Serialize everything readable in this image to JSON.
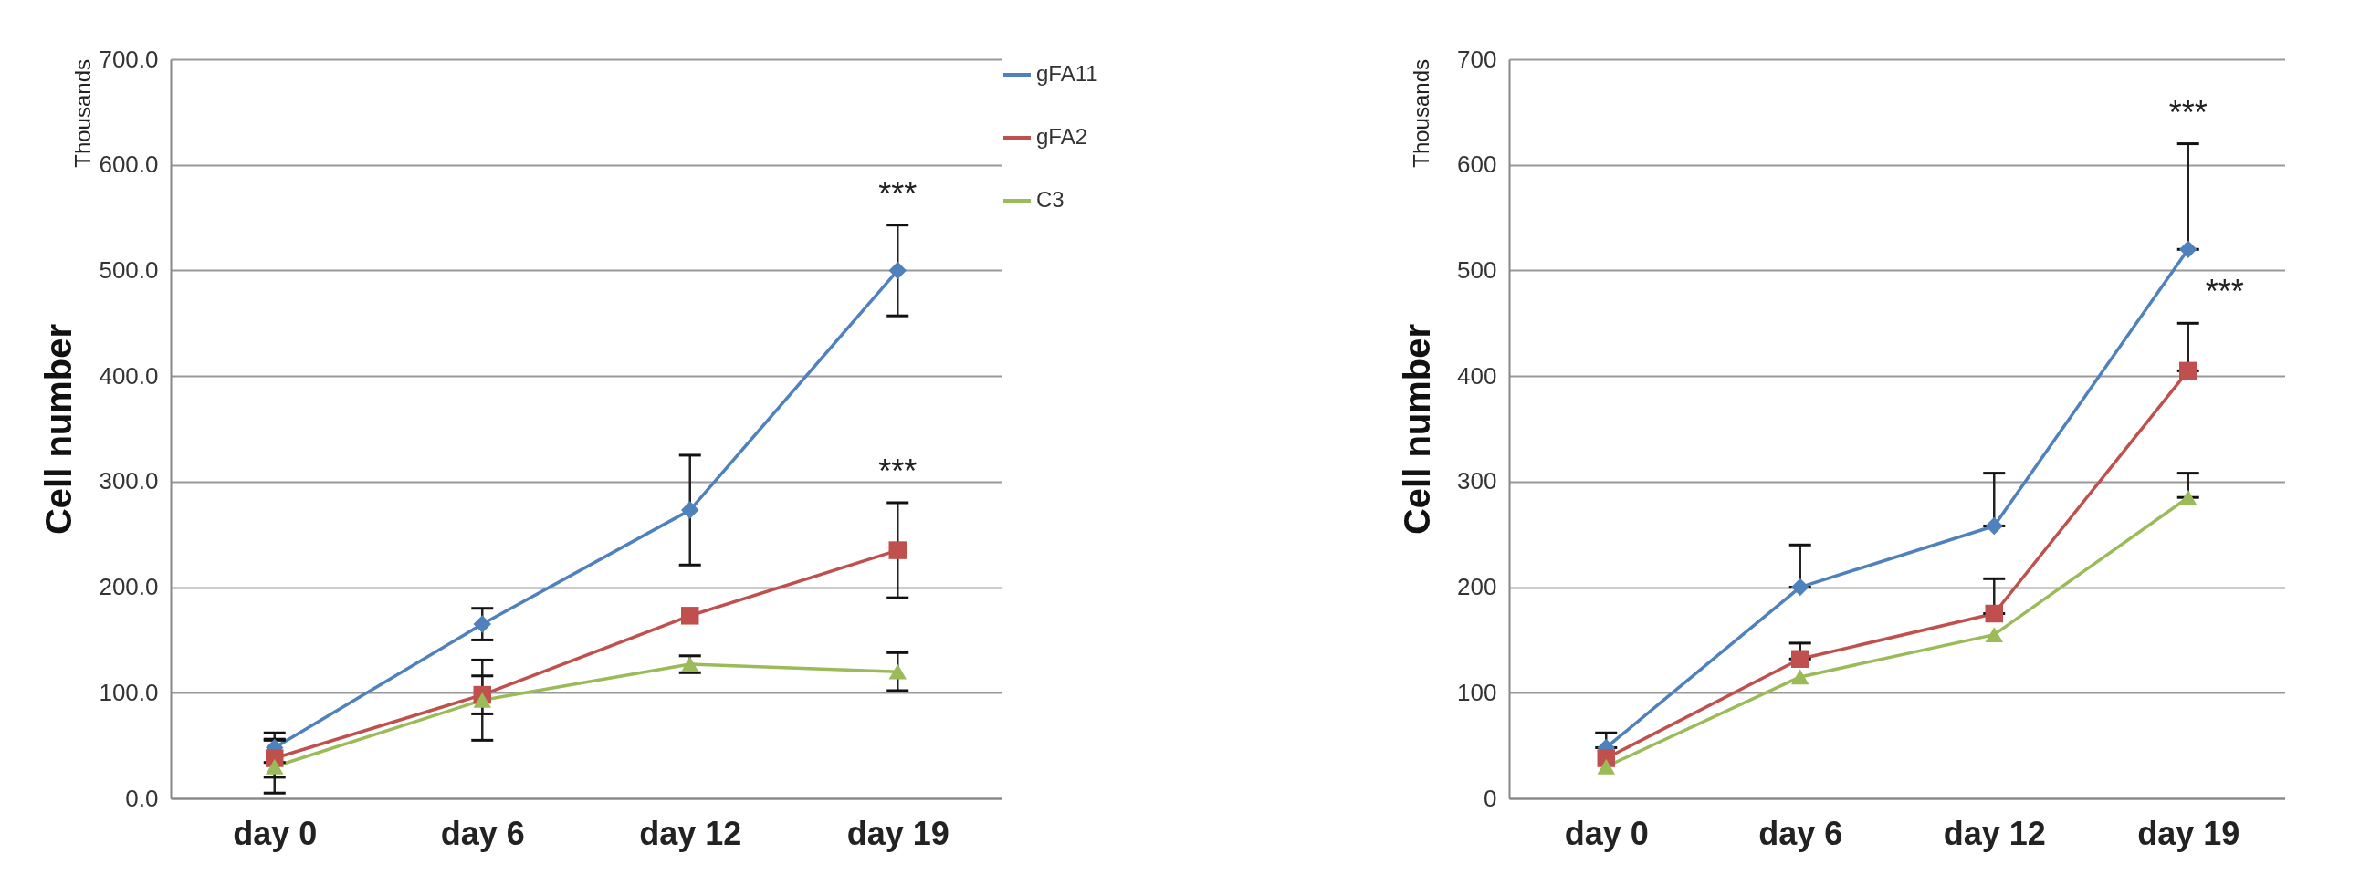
{
  "chart_data": [
    {
      "type": "line",
      "ylabel": "Cell number",
      "categories": [
        "day 0",
        "day 6",
        "day 12",
        "day 19"
      ],
      "ylim": [
        0,
        700
      ],
      "yticks": [
        {
          "value": 0,
          "label": "0.0"
        },
        {
          "value": 100,
          "label": "100.0"
        },
        {
          "value": 200,
          "label": "200.0"
        },
        {
          "value": 300,
          "label": "300.0"
        },
        {
          "value": 400,
          "label": "400.0"
        },
        {
          "value": 500,
          "label": "500.0"
        },
        {
          "value": 600,
          "label": "600.0"
        },
        {
          "value": 700,
          "label": "700.0"
        }
      ],
      "grid": "y",
      "legend": "right",
      "series": [
        {
          "name": "gFA11",
          "color": "#4f81bd",
          "marker": "diamond",
          "values": [
            48,
            165,
            273,
            500
          ],
          "errors": [
            14,
            15,
            52,
            43
          ]
        },
        {
          "name": "gFA2",
          "color": "#c0504d",
          "marker": "square",
          "values": [
            38,
            98,
            173,
            235
          ],
          "errors": [
            18,
            18,
            null,
            45
          ]
        },
        {
          "name": "C3",
          "color": "#9bbb59",
          "marker": "triangle",
          "values": [
            30,
            93,
            127,
            120
          ],
          "errors": [
            25,
            38,
            8,
            18
          ]
        }
      ],
      "annotations": [
        "Thousands",
        "***",
        "***"
      ]
    },
    {
      "type": "line",
      "ylabel": "Cell number",
      "categories": [
        "day 0",
        "day 6",
        "day 12",
        "day 19"
      ],
      "ylim": [
        0,
        700
      ],
      "yticks": [
        0,
        100,
        200,
        300,
        400,
        500,
        600,
        700
      ],
      "grid": "y",
      "series": [
        {
          "color": "#4f81bd",
          "marker": "diamond",
          "values": [
            48,
            200,
            258,
            520
          ],
          "errors": [
            [
              48,
              62
            ],
            [
              200,
              240
            ],
            [
              258,
              308
            ],
            [
              520,
              620
            ]
          ]
        },
        {
          "color": "#c0504d",
          "marker": "square",
          "values": [
            38,
            132,
            175,
            405
          ],
          "errors": [
            null,
            [
              132,
              147
            ],
            [
              175,
              208
            ],
            [
              405,
              450
            ]
          ]
        },
        {
          "color": "#9bbb59",
          "marker": "triangle",
          "values": [
            30,
            115,
            155,
            285
          ],
          "errors": [
            null,
            null,
            null,
            [
              285,
              308
            ]
          ]
        }
      ],
      "annotations": [
        "Thousands",
        "***",
        "***"
      ]
    }
  ]
}
